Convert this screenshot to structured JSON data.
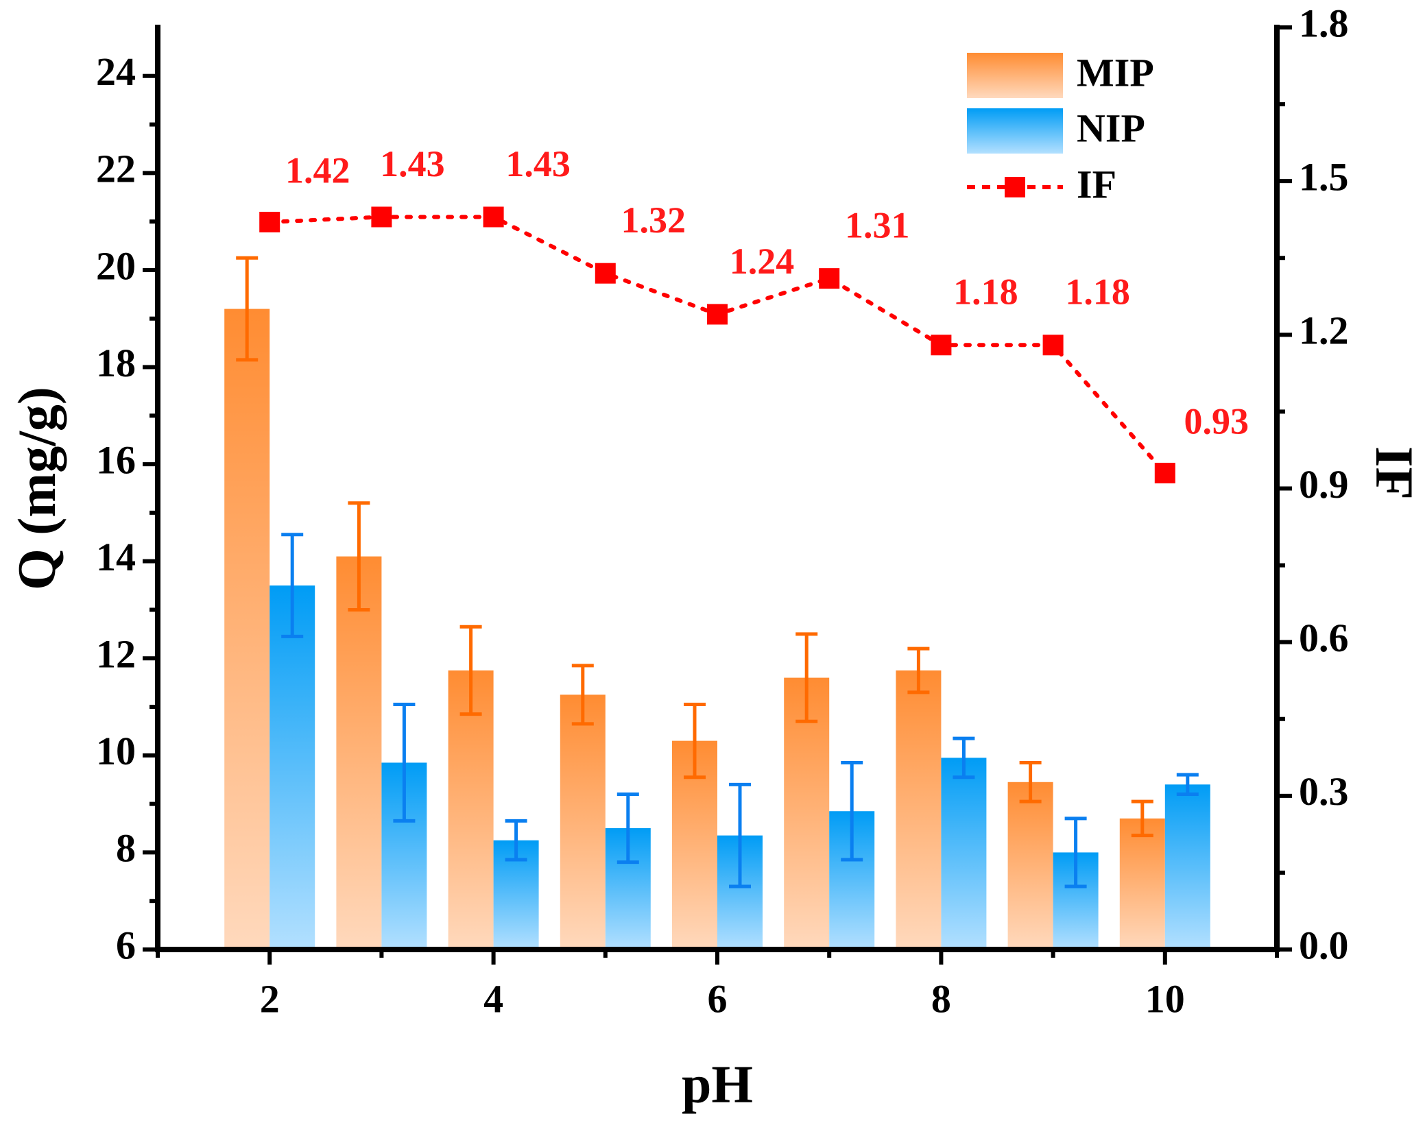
{
  "chart_data": {
    "type": "bar",
    "xlabel": "pH",
    "ylabel": "Q (mg/g)",
    "y2label": "IF",
    "x": [
      2,
      3,
      4,
      5,
      6,
      7,
      8,
      9,
      10
    ],
    "xticks": [
      "2",
      "4",
      "6",
      "8",
      "10"
    ],
    "xlim": [
      1,
      11
    ],
    "ylim": [
      6,
      25
    ],
    "yticks": [
      "6",
      "8",
      "10",
      "12",
      "14",
      "16",
      "18",
      "20",
      "22",
      "24"
    ],
    "y2lim": [
      0.0,
      1.8
    ],
    "y2ticks": [
      "0.0",
      "0.3",
      "0.6",
      "0.9",
      "1.2",
      "1.5",
      "1.8"
    ],
    "series": [
      {
        "name": "MIP",
        "kind": "bar",
        "color_top": "#ff8c32",
        "color_bottom": "#ffd9bd",
        "error_color": "#ff6a00",
        "values": [
          19.2,
          14.1,
          11.75,
          11.25,
          10.3,
          11.6,
          11.75,
          9.45,
          8.7
        ],
        "errors": [
          1.05,
          1.1,
          0.9,
          0.6,
          0.75,
          0.9,
          0.45,
          0.4,
          0.35
        ]
      },
      {
        "name": "NIP",
        "kind": "bar",
        "color_top": "#009cf5",
        "color_bottom": "#b3e0ff",
        "error_color": "#0a7ff0",
        "values": [
          13.5,
          9.85,
          8.25,
          8.5,
          8.35,
          8.85,
          9.95,
          8.0,
          9.4
        ],
        "errors": [
          1.05,
          1.2,
          0.4,
          0.7,
          1.05,
          1.0,
          0.4,
          0.7,
          0.2
        ]
      },
      {
        "name": "IF",
        "kind": "line",
        "axis": "right",
        "color": "#ff0000",
        "values": [
          1.42,
          1.43,
          1.43,
          1.32,
          1.24,
          1.31,
          1.18,
          1.18,
          0.93
        ],
        "labels": [
          "1.42",
          "1.43",
          "1.43",
          "1.32",
          "1.24",
          "1.31",
          "1.18",
          "1.18",
          "0.93"
        ]
      }
    ],
    "legend": {
      "position": "top-right",
      "entries": [
        "MIP",
        "NIP",
        "IF"
      ]
    }
  }
}
